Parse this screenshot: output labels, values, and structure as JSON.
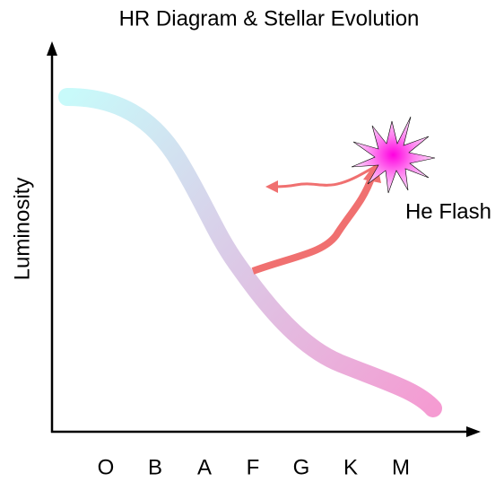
{
  "title": "HR Diagram & Stellar Evolution",
  "y_axis_label": "Luminosity",
  "annotation": "He Flash",
  "categories": [
    "O",
    "B",
    "A",
    "F",
    "G",
    "K",
    "M"
  ]
}
